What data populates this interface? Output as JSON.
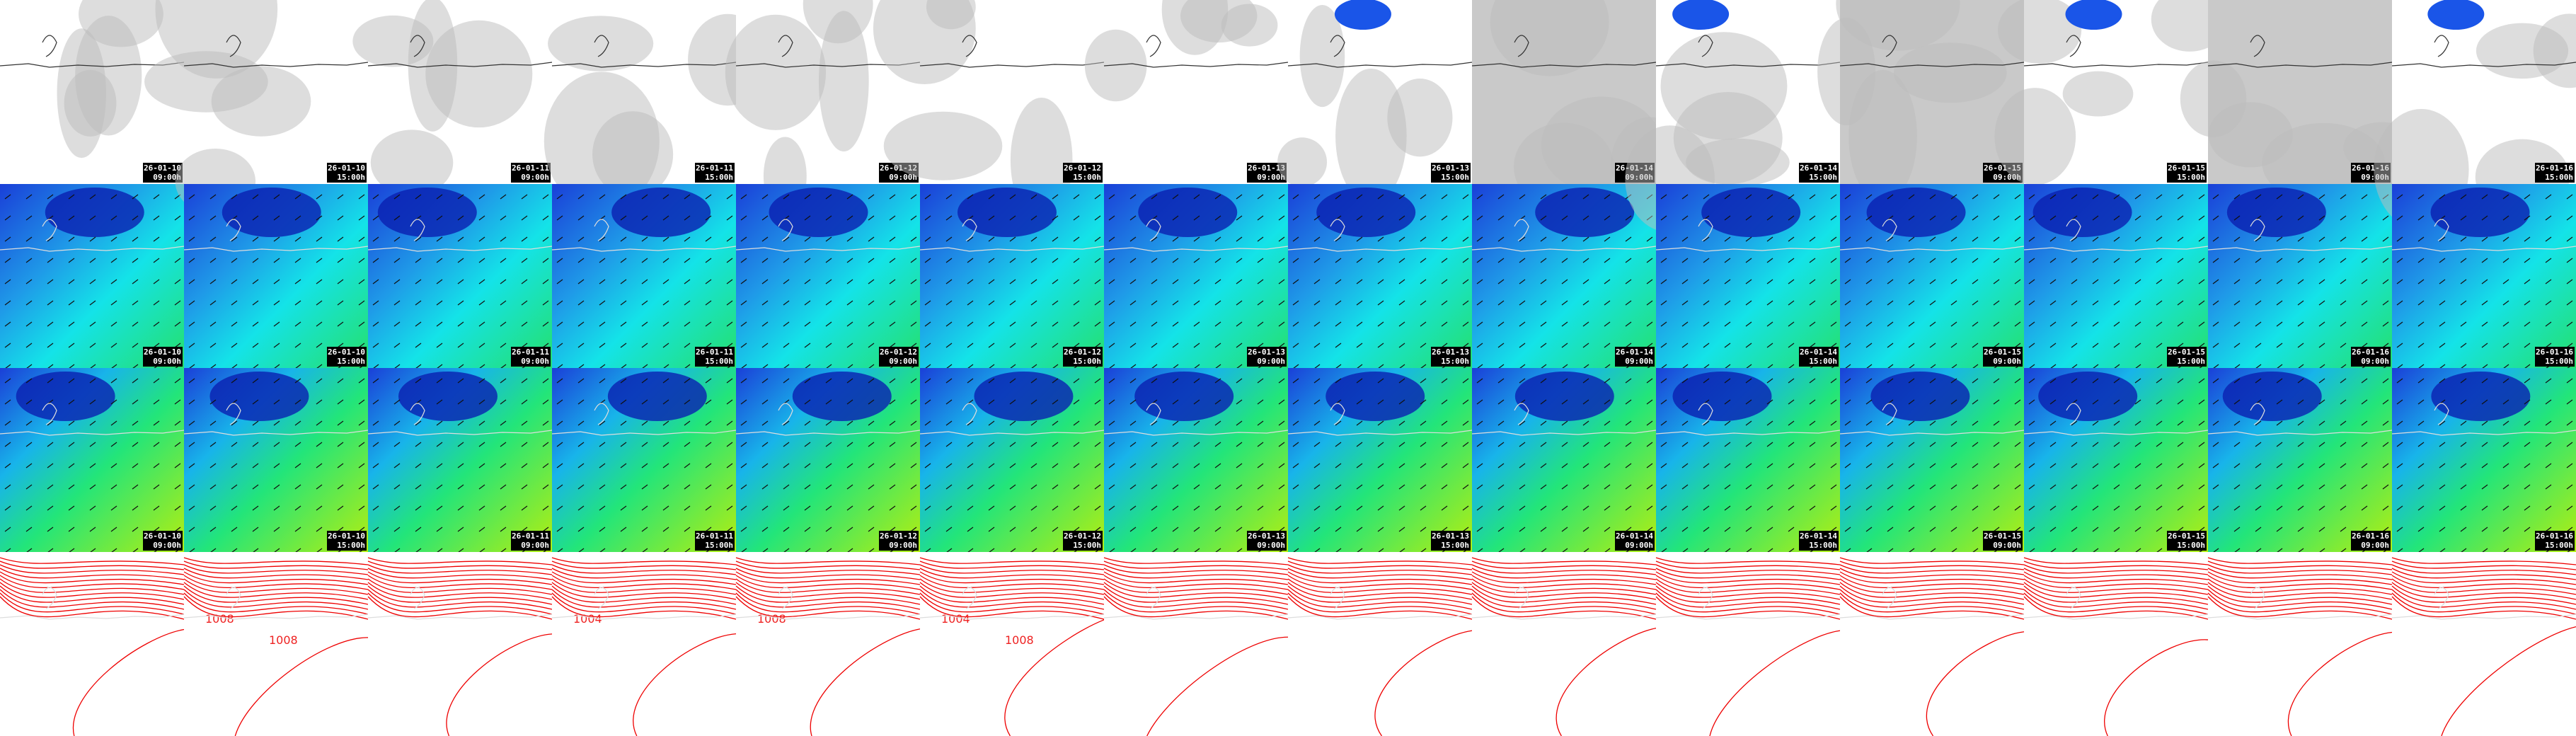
{
  "columns": [
    {
      "date": "26-01-10",
      "time": "09:00h",
      "contour_labels": []
    },
    {
      "date": "26-01-10",
      "time": "15:00h",
      "contour_labels": [
        "1008",
        "1008"
      ]
    },
    {
      "date": "26-01-11",
      "time": "09:00h",
      "contour_labels": []
    },
    {
      "date": "26-01-11",
      "time": "15:00h",
      "contour_labels": [
        "1004"
      ]
    },
    {
      "date": "26-01-12",
      "time": "09:00h",
      "contour_labels": [
        "1008"
      ]
    },
    {
      "date": "26-01-12",
      "time": "15:00h",
      "contour_labels": [
        "1004",
        "1008"
      ]
    },
    {
      "date": "26-01-13",
      "time": "09:00h",
      "contour_labels": []
    },
    {
      "date": "26-01-13",
      "time": "15:00h",
      "contour_labels": []
    },
    {
      "date": "26-01-14",
      "time": "09:00h",
      "contour_labels": []
    },
    {
      "date": "26-01-14",
      "time": "15:00h",
      "contour_labels": []
    },
    {
      "date": "26-01-15",
      "time": "09:00h",
      "contour_labels": []
    },
    {
      "date": "26-01-15",
      "time": "15:00h",
      "contour_labels": []
    },
    {
      "date": "26-01-16",
      "time": "09:00h",
      "contour_labels": []
    },
    {
      "date": "26-01-16",
      "time": "15:00h",
      "contour_labels": []
    }
  ]
}
